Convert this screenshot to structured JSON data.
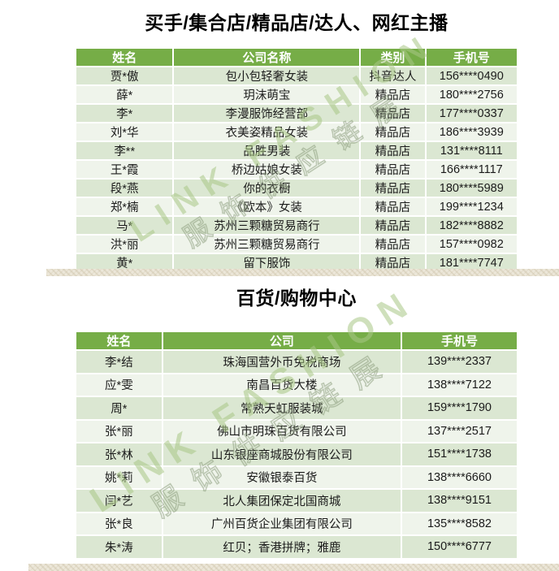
{
  "sections": [
    {
      "title": "买手/集合店/精品店/达人、网红主播",
      "columns": [
        "姓名",
        "公司名称",
        "类别",
        "手机号"
      ],
      "rows": [
        [
          "贾*傲",
          "包小包轻奢女装",
          "抖音达人",
          "156****0490"
        ],
        [
          "薛*",
          "玥沫萌宝",
          "精品店",
          "180****2756"
        ],
        [
          "李*",
          "李漫服饰经营部",
          "精品店",
          "177****0337"
        ],
        [
          "刘*华",
          "衣美姿精品女装",
          "精品店",
          "186****3939"
        ],
        [
          "李**",
          "品胜男装",
          "精品店",
          "131****8111"
        ],
        [
          "王*霞",
          "桥边姑娘女装",
          "精品店",
          "166****1117"
        ],
        [
          "段*燕",
          "你的衣橱",
          "精品店",
          "180****5989"
        ],
        [
          "郑*楠",
          "《欧本》女装",
          "精品店",
          "199****1234"
        ],
        [
          "马*",
          "苏州三颗糖贸易商行",
          "精品店",
          "182****8882"
        ],
        [
          "洪*丽",
          "苏州三颗糖贸易商行",
          "精品店",
          "157****0982"
        ],
        [
          "黄*",
          "留下服饰",
          "精品店",
          "181****7747"
        ]
      ]
    },
    {
      "title": "百货/购物中心",
      "columns": [
        "姓名",
        "公司",
        "手机号"
      ],
      "rows": [
        [
          "李*结",
          "珠海国营外币免税商场",
          "139****2337"
        ],
        [
          "应*雯",
          "南昌百货大楼",
          "138****7122"
        ],
        [
          "周*",
          "常熟天虹服装城",
          "159****1790"
        ],
        [
          "张*丽",
          "佛山市明珠百货有限公司",
          "137****2517"
        ],
        [
          "张*林",
          "山东银座商城股份有限公司",
          "151****1738"
        ],
        [
          "姚*莉",
          "安徽银泰百货",
          "138****6660"
        ],
        [
          "闫*艺",
          "北人集团保定北国商城",
          "138****9151"
        ],
        [
          "张*良",
          "广州百货企业集团有限公司",
          "135****8582"
        ],
        [
          "朱*涛",
          "红贝；香港拼牌；雅鹿",
          "150****6777"
        ]
      ]
    }
  ],
  "watermark": {
    "line1": "LINK FASHION",
    "line2": "服饰供应链展"
  },
  "colors": {
    "header_green": "#76AD47",
    "row_green": "#DBE7D2",
    "row_light": "#EFF4EB",
    "texture_beige": "#ECE7D9"
  }
}
